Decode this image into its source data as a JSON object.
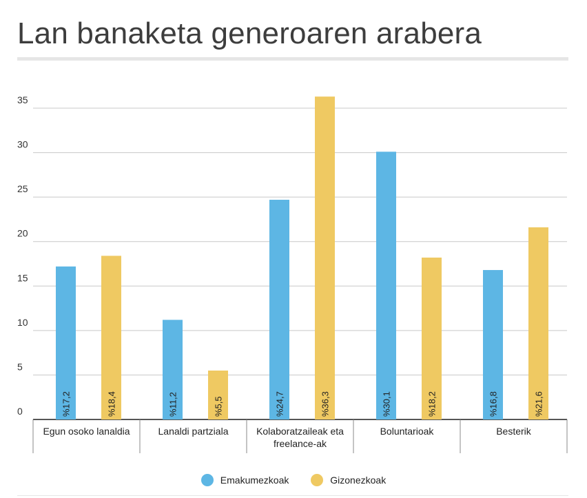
{
  "chart_data": {
    "type": "bar",
    "title": "Lan banaketa generoaren arabera",
    "categories": [
      [
        "Egun osoko lanaldia"
      ],
      [
        "Lanaldi partziala"
      ],
      [
        "Kolaboratzaileak eta",
        "freelance-ak"
      ],
      [
        "Boluntarioak"
      ],
      [
        "Besterik"
      ]
    ],
    "series": [
      {
        "name": "Emakumezkoak",
        "color": "#5db6e4",
        "values": [
          17.2,
          11.2,
          24.7,
          30.1,
          16.8
        ],
        "labels": [
          "%17,2",
          "%11,2",
          "%24,7",
          "%30,1",
          "%16,8"
        ]
      },
      {
        "name": "Gizonezkoak",
        "color": "#efc962",
        "values": [
          18.4,
          5.5,
          36.3,
          18.2,
          21.6
        ],
        "labels": [
          "%18,4",
          "%5,5",
          "%36,3",
          "%18,2",
          "%21,6"
        ]
      }
    ],
    "ylim": [
      0,
      35
    ],
    "yticks": [
      0,
      5,
      10,
      15,
      20,
      25,
      30,
      35
    ],
    "grid": true,
    "legend_position": "bottom-center"
  }
}
